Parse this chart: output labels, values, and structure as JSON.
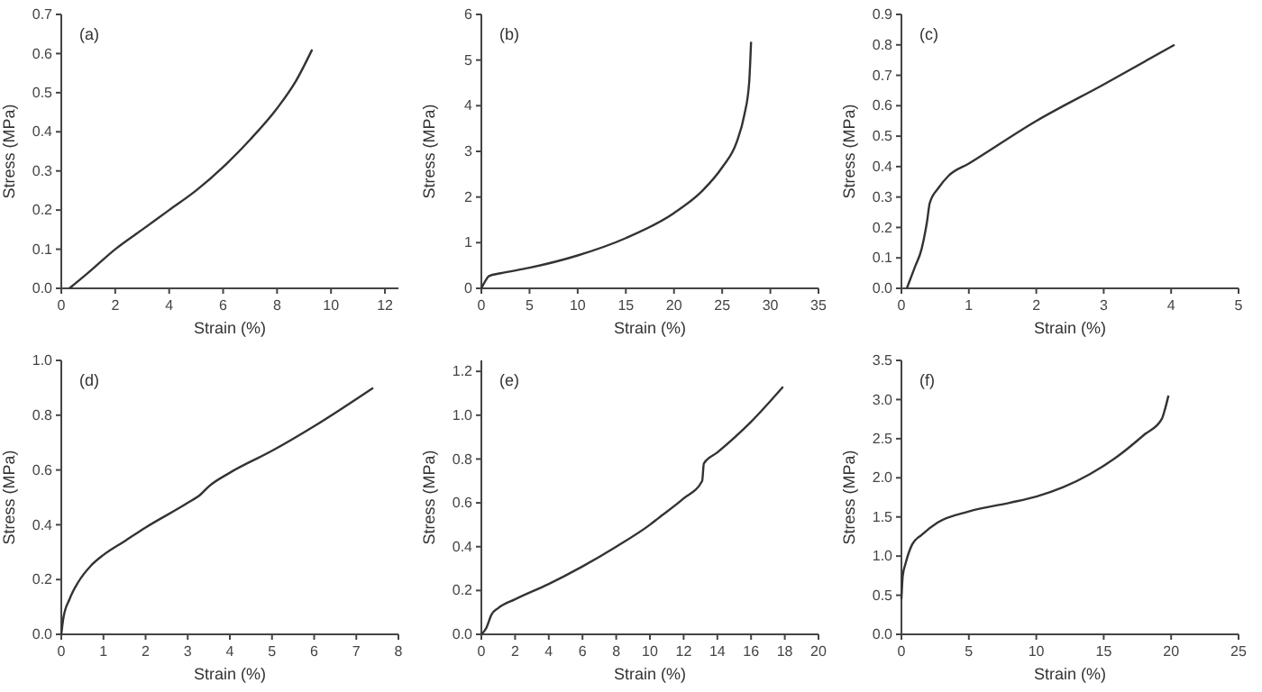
{
  "chart_data": [
    {
      "type": "line",
      "xlabel": "Strain (%)",
      "ylabel": "Stress (MPa)",
      "annotations": [
        "(a)"
      ],
      "xlim": [
        0,
        12.5
      ],
      "ylim": [
        0,
        0.7
      ],
      "xticks": [
        0,
        2,
        4,
        6,
        8,
        10,
        12
      ],
      "yticks": [
        {
          "value": 0,
          "label": "0.0"
        },
        0.1,
        0.2,
        0.3,
        0.4,
        0.5,
        0.6,
        0.7
      ],
      "series": [
        {
          "color": "#333333",
          "x": [
            0.3,
            1,
            2,
            3,
            4,
            5,
            6,
            7,
            8,
            8.7,
            9.3
          ],
          "values": [
            0,
            0.04,
            0.1,
            0.15,
            0.2,
            0.25,
            0.31,
            0.38,
            0.46,
            0.53,
            0.61
          ]
        }
      ]
    },
    {
      "type": "line",
      "xlabel": "Strain (%)",
      "ylabel": "Stress (MPa)",
      "annotations": [
        "(b)"
      ],
      "xlim": [
        0,
        35
      ],
      "ylim": [
        0,
        6
      ],
      "xticks": [
        0,
        5,
        10,
        15,
        20,
        25,
        30,
        35
      ],
      "yticks": [
        0,
        1,
        2,
        3,
        4,
        5,
        6
      ],
      "series": [
        {
          "color": "#333333",
          "x": [
            0,
            0.3,
            0.8,
            2,
            5,
            10,
            15,
            20,
            23,
            25,
            26.5,
            27.3,
            27.8,
            28
          ],
          "values": [
            0,
            0.12,
            0.27,
            0.33,
            0.45,
            0.72,
            1.1,
            1.65,
            2.15,
            2.65,
            3.2,
            3.8,
            4.5,
            5.4
          ]
        }
      ]
    },
    {
      "type": "line",
      "xlabel": "Strain (%)",
      "ylabel": "Stress (MPa)",
      "annotations": [
        "(c)"
      ],
      "xlim": [
        0,
        5
      ],
      "ylim": [
        0,
        0.9
      ],
      "xticks": [
        0,
        1,
        2,
        3,
        4,
        5
      ],
      "yticks": [
        {
          "value": 0,
          "label": "0.0"
        },
        0.1,
        0.2,
        0.3,
        0.4,
        0.5,
        0.6,
        0.7,
        0.8,
        0.9
      ],
      "series": [
        {
          "color": "#333333",
          "x": [
            0.08,
            0.2,
            0.3,
            0.38,
            0.42,
            0.55,
            0.7,
            1,
            2,
            3,
            4.05
          ],
          "values": [
            0,
            0.07,
            0.13,
            0.22,
            0.28,
            0.33,
            0.37,
            0.41,
            0.55,
            0.67,
            0.8
          ]
        }
      ]
    },
    {
      "type": "line",
      "xlabel": "Strain (%)",
      "ylabel": "Stress (MPa)",
      "annotations": [
        "(d)"
      ],
      "xlim": [
        0,
        8
      ],
      "ylim": [
        0,
        1
      ],
      "xticks": [
        0,
        1,
        2,
        3,
        4,
        5,
        6,
        7,
        8
      ],
      "yticks": [
        {
          "value": 0,
          "label": "0.0"
        },
        0.2,
        0.4,
        0.6,
        0.8,
        {
          "value": 1,
          "label": "1.0"
        }
      ],
      "series": [
        {
          "color": "#333333",
          "x": [
            0,
            0.05,
            0.2,
            0.4,
            0.7,
            1,
            1.5,
            2,
            3,
            3.3,
            3.5,
            4,
            5,
            6,
            7.4
          ],
          "values": [
            0,
            0.06,
            0.13,
            0.19,
            0.25,
            0.29,
            0.34,
            0.39,
            0.48,
            0.51,
            0.54,
            0.59,
            0.67,
            0.76,
            0.9
          ]
        }
      ]
    },
    {
      "type": "line",
      "xlabel": "Strain (%)",
      "ylabel": "Stress (MPa)",
      "annotations": [
        "(e)"
      ],
      "xlim": [
        0,
        20
      ],
      "ylim": [
        0,
        1.25
      ],
      "xticks": [
        0,
        2,
        4,
        6,
        8,
        10,
        12,
        14,
        16,
        18,
        20
      ],
      "yticks": [
        {
          "value": 0,
          "label": "0.0"
        },
        0.2,
        0.4,
        0.6,
        0.8,
        {
          "value": 1,
          "label": "1.0"
        },
        1.2
      ],
      "series": [
        {
          "color": "#333333",
          "x": [
            0,
            0.3,
            0.6,
            1,
            2,
            4,
            6,
            8,
            10,
            10.5,
            12,
            13.1,
            13.2,
            14,
            16,
            17.9
          ],
          "values": [
            0,
            0.03,
            0.09,
            0.12,
            0.16,
            0.23,
            0.31,
            0.4,
            0.5,
            0.53,
            0.62,
            0.7,
            0.78,
            0.83,
            0.97,
            1.13
          ]
        }
      ]
    },
    {
      "type": "line",
      "xlabel": "Strain (%)",
      "ylabel": "Stress (MPa)",
      "annotations": [
        "(f)"
      ],
      "xlim": [
        0,
        25
      ],
      "ylim": [
        0,
        3.5
      ],
      "xticks": [
        0,
        5,
        10,
        15,
        20,
        25
      ],
      "yticks": [
        {
          "value": 0,
          "label": "0.0"
        },
        0.5,
        {
          "value": 1,
          "label": "1.0"
        },
        1.5,
        {
          "value": 2,
          "label": "2.0"
        },
        2.5,
        {
          "value": 3,
          "label": "3.0"
        },
        3.5
      ],
      "series": [
        {
          "color": "#333333",
          "x": [
            0,
            0.1,
            0.3,
            0.8,
            1.5,
            2.7,
            5,
            8,
            10,
            12,
            14,
            16,
            18,
            19.3,
            19.5,
            19.8
          ],
          "values": [
            0.45,
            0.75,
            0.9,
            1.15,
            1.27,
            1.43,
            1.57,
            1.68,
            1.76,
            1.88,
            2.05,
            2.27,
            2.55,
            2.75,
            2.85,
            3.05
          ]
        }
      ]
    }
  ]
}
